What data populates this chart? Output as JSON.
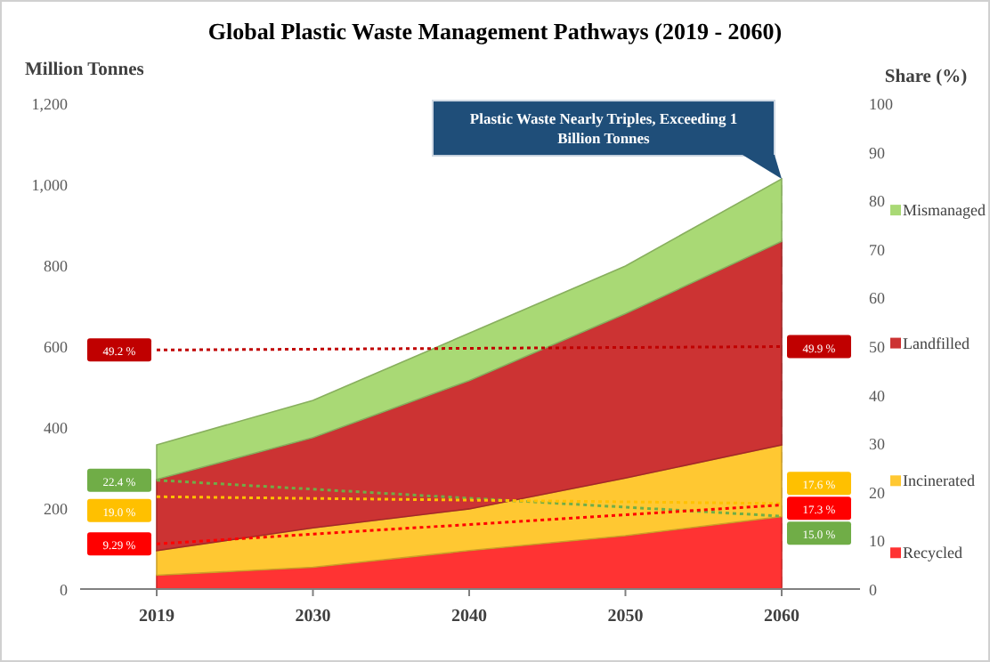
{
  "chart_data": {
    "type": "area",
    "stacked": true,
    "title": "Global Plastic Waste Management Pathways (2019 - 2060)",
    "ylabel": "Million Tonnes",
    "y2label": "Share (%)",
    "categories": [
      "2019",
      "2030",
      "2040",
      "2050",
      "2060"
    ],
    "series": [
      {
        "name": "Recycled",
        "color": "#ff3333",
        "values": [
          34,
          54,
          95,
          132,
          179
        ]
      },
      {
        "name": "Incinerated",
        "color": "#ffc832",
        "values": [
          61,
          97,
          103,
          142,
          177
        ]
      },
      {
        "name": "Landfilled",
        "color": "#cc3333",
        "values": [
          176,
          223,
          317,
          406,
          503
        ]
      },
      {
        "name": "Mismanaged",
        "color": "#a9d975",
        "values": [
          85,
          92,
          117,
          118,
          154
        ]
      },
      {
        "type": "line",
        "axis": "y2",
        "color": "#c00000",
        "values": [
          49.2,
          null,
          null,
          null,
          49.9
        ],
        "value_labels": [
          "49.2 %",
          null,
          null,
          null,
          "49.9 %"
        ]
      },
      {
        "type": "line",
        "axis": "y2",
        "color": "#70ad47",
        "values": [
          22.4,
          null,
          null,
          null,
          15.0
        ],
        "value_labels": [
          "22.4 %",
          null,
          null,
          null,
          "15.0 %"
        ]
      },
      {
        "type": "line",
        "axis": "y2",
        "color": "#ffc000",
        "values": [
          19.0,
          null,
          null,
          null,
          17.6
        ],
        "value_labels": [
          "19.0 %",
          null,
          null,
          null,
          "17.6 %"
        ]
      },
      {
        "type": "line",
        "axis": "y2",
        "color": "#ff0000",
        "values": [
          9.29,
          null,
          null,
          null,
          17.3
        ],
        "value_labels": [
          "9.29 %",
          null,
          null,
          null,
          "17.3 %"
        ]
      }
    ],
    "ref_lines": [
      {
        "axis": "x",
        "value": "2060",
        "color": "#c0c0c0",
        "line_style": "dashed"
      }
    ],
    "ylim": [
      0,
      1200
    ],
    "yticks": [
      0,
      200,
      400,
      600,
      800,
      {
        "value": 1000,
        "label": "1,000"
      },
      {
        "value": 1200,
        "label": "1,200"
      }
    ],
    "y2lim": [
      0,
      100
    ],
    "y2ticks": [
      0,
      10,
      20,
      30,
      40,
      50,
      60,
      70,
      80,
      90,
      100
    ],
    "line_style": "dotted",
    "marker": "none",
    "grid": false,
    "legend": "right",
    "annotations": [
      "Plastic Waste Nearly Triples, Exceeding 1 Billion Tonnes"
    ]
  }
}
